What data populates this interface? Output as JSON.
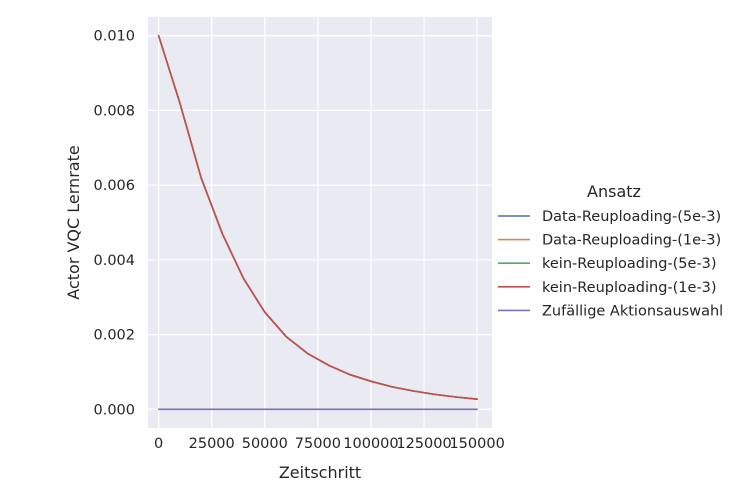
{
  "chart_data": {
    "type": "line",
    "xlabel": "Zeitschritt",
    "ylabel": "Actor VQC Lernrate",
    "xlim": [
      -5000,
      157000
    ],
    "ylim": [
      -0.0005,
      0.0105
    ],
    "x_ticks": [
      0,
      25000,
      50000,
      75000,
      100000,
      125000,
      150000
    ],
    "x_tick_labels": [
      "0",
      "25000",
      "50000",
      "75000",
      "100000",
      "125000",
      "150000"
    ],
    "y_ticks": [
      0.0,
      0.002,
      0.004,
      0.006,
      0.008,
      0.01
    ],
    "y_tick_labels": [
      "0.000",
      "0.002",
      "0.004",
      "0.006",
      "0.008",
      "0.010"
    ],
    "grid": true,
    "legend": {
      "title": "Ansatz",
      "placement": "right"
    },
    "x": [
      0,
      10000,
      20000,
      30000,
      40000,
      50000,
      60000,
      70000,
      80000,
      90000,
      100000,
      110000,
      120000,
      130000,
      140000,
      150000
    ],
    "series": [
      {
        "name": "Data-Reuploading-(5e-3)",
        "color": "#4c72b0",
        "values": [
          0.01,
          0.0082,
          0.0062,
          0.0047,
          0.0035,
          0.0026,
          0.00195,
          0.0015,
          0.00118,
          0.00093,
          0.00075,
          0.0006,
          0.00049,
          0.0004,
          0.00033,
          0.00027
        ]
      },
      {
        "name": "Data-Reuploading-(1e-3)",
        "color": "#dd8452",
        "values": [
          0.01,
          0.0082,
          0.0062,
          0.0047,
          0.0035,
          0.0026,
          0.00195,
          0.0015,
          0.00118,
          0.00093,
          0.00075,
          0.0006,
          0.00049,
          0.0004,
          0.00033,
          0.00027
        ]
      },
      {
        "name": "kein-Reuploading-(5e-3)",
        "color": "#55a868",
        "values": [
          0.01,
          0.0082,
          0.0062,
          0.0047,
          0.0035,
          0.0026,
          0.00195,
          0.0015,
          0.00118,
          0.00093,
          0.00075,
          0.0006,
          0.00049,
          0.0004,
          0.00033,
          0.00027
        ]
      },
      {
        "name": "kein-Reuploading-(1e-3)",
        "color": "#c44e52",
        "values": [
          0.01,
          0.0082,
          0.0062,
          0.0047,
          0.0035,
          0.0026,
          0.00195,
          0.0015,
          0.00118,
          0.00093,
          0.00075,
          0.0006,
          0.00049,
          0.0004,
          0.00033,
          0.00027
        ]
      },
      {
        "name": "Zufällige Aktionsauswahl",
        "color": "#8172b3",
        "values": [
          0,
          0,
          0,
          0,
          0,
          0,
          0,
          0,
          0,
          0,
          0,
          0,
          0,
          0,
          0,
          0
        ]
      }
    ]
  }
}
